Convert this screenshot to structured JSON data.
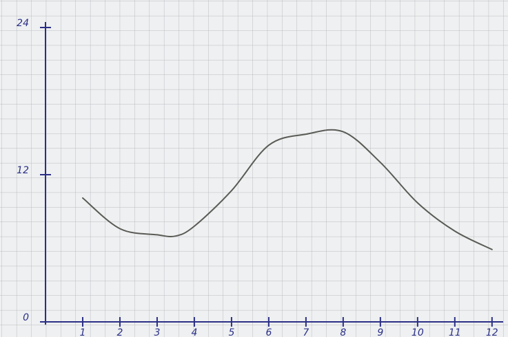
{
  "chart_data": {
    "type": "line",
    "x": [
      1,
      2,
      3,
      3.5,
      4,
      5,
      6,
      7,
      8,
      9,
      10,
      11,
      12
    ],
    "values": [
      10.1,
      7.6,
      7.1,
      7.0,
      7.8,
      10.7,
      14.4,
      15.3,
      15.5,
      13.0,
      9.7,
      7.4,
      5.9
    ],
    "color": "#5a5a55",
    "axis_color": "#2b2f86",
    "xlim": [
      0,
      12.3
    ],
    "xticks": [
      1,
      2,
      3,
      4,
      5,
      6,
      7,
      8,
      9,
      10,
      11,
      12
    ],
    "ylim": [
      0,
      24
    ],
    "yticks": [
      0,
      12,
      24
    ],
    "grid": true
  }
}
